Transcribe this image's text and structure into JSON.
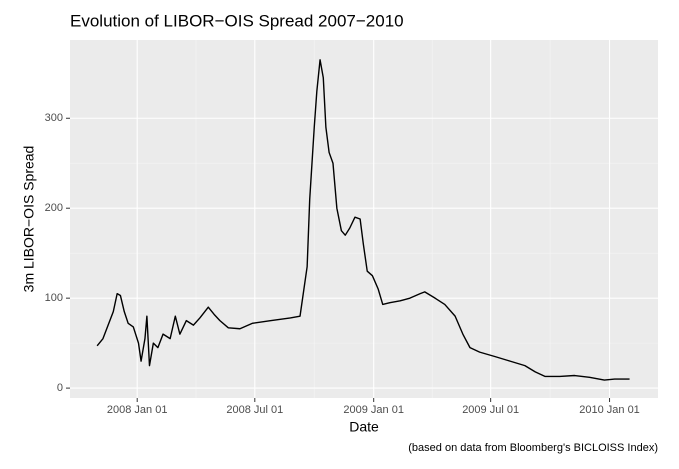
{
  "chart_data": {
    "type": "line",
    "title": "Evolution of LIBOR−OIS Spread 2007−2010",
    "x_label": "Date",
    "y_label": "3m LIBOR−OIS Spread",
    "caption": "(based on data from Bloomberg's BICLOISS Index)",
    "x": [
      "2007-10-31",
      "2007-11-09",
      "2007-11-17",
      "2007-11-25",
      "2007-12-01",
      "2007-12-06",
      "2007-12-12",
      "2007-12-18",
      "2007-12-26",
      "2008-01-03",
      "2008-01-07",
      "2008-01-13",
      "2008-01-16",
      "2008-01-20",
      "2008-01-26",
      "2008-02-02",
      "2008-02-10",
      "2008-02-21",
      "2008-02-29",
      "2008-03-07",
      "2008-03-17",
      "2008-03-28",
      "2008-04-07",
      "2008-04-20",
      "2008-04-29",
      "2008-05-08",
      "2008-05-21",
      "2008-06-08",
      "2008-06-27",
      "2008-07-25",
      "2008-08-25",
      "2008-09-09",
      "2008-09-15",
      "2008-09-20",
      "2008-09-24",
      "2008-10-01",
      "2008-10-05",
      "2008-10-10",
      "2008-10-15",
      "2008-10-19",
      "2008-10-24",
      "2008-10-30",
      "2008-11-05",
      "2008-11-12",
      "2008-11-18",
      "2008-11-25",
      "2008-12-03",
      "2008-12-11",
      "2008-12-16",
      "2008-12-22",
      "2008-12-30",
      "2009-01-08",
      "2009-01-15",
      "2009-01-26",
      "2009-02-11",
      "2009-02-26",
      "2009-03-14",
      "2009-03-21",
      "2009-04-06",
      "2009-04-21",
      "2009-05-07",
      "2009-05-19",
      "2009-05-30",
      "2009-06-14",
      "2009-07-08",
      "2009-07-31",
      "2009-08-23",
      "2009-09-08",
      "2009-09-23",
      "2009-10-16",
      "2009-11-08",
      "2009-12-01",
      "2009-12-24",
      "2010-01-09",
      "2010-02-01"
    ],
    "series": [
      {
        "color": "#000000",
        "values": [
          47,
          55,
          70,
          85,
          105,
          103,
          85,
          72,
          68,
          50,
          30,
          55,
          80,
          25,
          50,
          45,
          60,
          55,
          80,
          60,
          75,
          70,
          78,
          90,
          82,
          75,
          67,
          66,
          72,
          75,
          78,
          80,
          110,
          135,
          210,
          290,
          330,
          365,
          345,
          290,
          262,
          250,
          200,
          175,
          170,
          178,
          190,
          188,
          160,
          130,
          125,
          110,
          93,
          95,
          97,
          100,
          105,
          107,
          100,
          93,
          80,
          60,
          45,
          40,
          35,
          30,
          25,
          18,
          13,
          13,
          14,
          12,
          9,
          10,
          10
        ]
      }
    ],
    "xlim": [
      "2007-09-19",
      "2010-03-17"
    ],
    "xticks": [
      {
        "value": "2008-01-01",
        "label": "2008 Jan 01"
      },
      {
        "value": "2008-07-01",
        "label": "2008 Jul 01"
      },
      {
        "value": "2009-01-01",
        "label": "2009 Jan 01"
      },
      {
        "value": "2009-07-01",
        "label": "2009 Jul 01"
      },
      {
        "value": "2010-01-01",
        "label": "2010 Jan 01"
      }
    ],
    "ylim": [
      -11,
      387
    ],
    "yticks": [
      0,
      100,
      200,
      300
    ],
    "grid": true
  }
}
